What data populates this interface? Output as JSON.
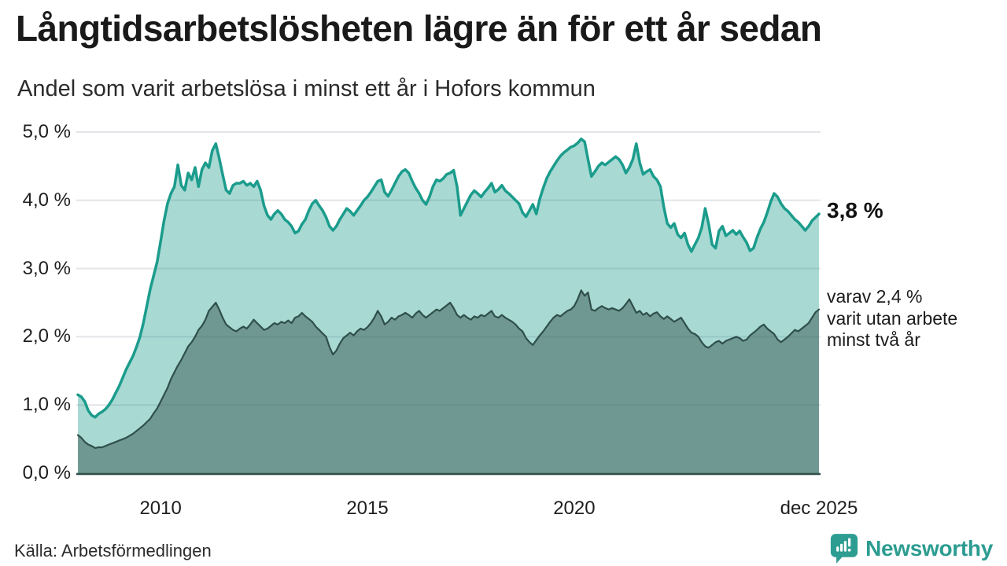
{
  "header": {
    "title": "Långtidsarbetslösheten lägre än för ett år sedan",
    "subtitle": "Andel som varit arbetslösa i minst ett år i Hofors kommun"
  },
  "chart_data": {
    "type": "area",
    "unit": "%",
    "title": "Långtidsarbetslösheten lägre än för ett år sedan",
    "subtitle": "Andel som varit arbetslösa i minst ett år i Hofors kommun",
    "grid": true,
    "ylim": [
      0,
      5
    ],
    "x_start_year": 2008,
    "x_points_per_year": 12,
    "yticks": [
      {
        "value": 5,
        "label": "5,0 %"
      },
      {
        "value": 4,
        "label": "4,0 %"
      },
      {
        "value": 3,
        "label": "3,0 %"
      },
      {
        "value": 2,
        "label": "2,0 %"
      },
      {
        "value": 1,
        "label": "1,0 %"
      },
      {
        "value": 0,
        "label": "0,0 %"
      }
    ],
    "xticks": [
      {
        "value": 2010,
        "label": "2010"
      },
      {
        "value": 2015,
        "label": "2015"
      },
      {
        "value": 2020,
        "label": "2020"
      },
      {
        "value": 2025.9167,
        "label": "dec 2025"
      }
    ],
    "series": [
      {
        "name": "minst ett år",
        "line_color": "#1b9c8c",
        "fill_color": "rgba(27,156,140,0.38)",
        "line_width": 3.5,
        "latest_value": "3,8 %",
        "values": [
          1.15,
          1.12,
          1.05,
          0.92,
          0.85,
          0.82,
          0.87,
          0.9,
          0.94,
          1.0,
          1.08,
          1.18,
          1.28,
          1.4,
          1.52,
          1.62,
          1.72,
          1.85,
          2.0,
          2.2,
          2.45,
          2.7,
          2.9,
          3.1,
          3.4,
          3.7,
          3.95,
          4.1,
          4.2,
          4.52,
          4.22,
          4.15,
          4.4,
          4.3,
          4.48,
          4.2,
          4.45,
          4.55,
          4.48,
          4.73,
          4.83,
          4.62,
          4.38,
          4.15,
          4.1,
          4.22,
          4.25,
          4.25,
          4.28,
          4.22,
          4.25,
          4.2,
          4.28,
          4.15,
          3.92,
          3.78,
          3.72,
          3.8,
          3.85,
          3.8,
          3.72,
          3.68,
          3.62,
          3.52,
          3.55,
          3.65,
          3.72,
          3.85,
          3.95,
          4.0,
          3.92,
          3.85,
          3.75,
          3.62,
          3.56,
          3.62,
          3.72,
          3.8,
          3.88,
          3.84,
          3.78,
          3.85,
          3.92,
          4.0,
          4.05,
          4.12,
          4.2,
          4.28,
          4.3,
          4.12,
          4.06,
          4.15,
          4.25,
          4.35,
          4.42,
          4.45,
          4.4,
          4.28,
          4.18,
          4.1,
          4.0,
          3.94,
          4.05,
          4.2,
          4.3,
          4.28,
          4.32,
          4.38,
          4.4,
          4.44,
          4.2,
          3.78,
          3.88,
          3.98,
          4.08,
          4.14,
          4.1,
          4.05,
          4.12,
          4.18,
          4.25,
          4.12,
          4.16,
          4.22,
          4.14,
          4.1,
          4.05,
          4.0,
          3.95,
          3.82,
          3.76,
          3.85,
          3.94,
          3.8,
          4.02,
          4.18,
          4.32,
          4.42,
          4.5,
          4.58,
          4.65,
          4.7,
          4.74,
          4.78,
          4.8,
          4.84,
          4.9,
          4.86,
          4.6,
          4.35,
          4.42,
          4.5,
          4.55,
          4.52,
          4.56,
          4.6,
          4.64,
          4.6,
          4.52,
          4.4,
          4.48,
          4.6,
          4.83,
          4.55,
          4.38,
          4.42,
          4.45,
          4.35,
          4.3,
          4.2,
          3.9,
          3.66,
          3.6,
          3.66,
          3.5,
          3.45,
          3.52,
          3.35,
          3.25,
          3.35,
          3.45,
          3.6,
          3.88,
          3.65,
          3.35,
          3.3,
          3.55,
          3.62,
          3.48,
          3.52,
          3.56,
          3.5,
          3.55,
          3.46,
          3.38,
          3.26,
          3.3,
          3.45,
          3.58,
          3.68,
          3.82,
          3.98,
          4.1,
          4.05,
          3.95,
          3.88,
          3.84,
          3.78,
          3.72,
          3.68,
          3.62,
          3.56,
          3.62,
          3.7,
          3.75,
          3.8
        ]
      },
      {
        "name": "minst två år",
        "line_color": "#2f4f4b",
        "fill_color": "rgba(61,92,86,0.52)",
        "line_width": 2.2,
        "latest_value": "2,4 %",
        "values": [
          0.56,
          0.52,
          0.46,
          0.42,
          0.4,
          0.37,
          0.38,
          0.38,
          0.4,
          0.42,
          0.44,
          0.46,
          0.48,
          0.5,
          0.52,
          0.55,
          0.58,
          0.62,
          0.66,
          0.7,
          0.75,
          0.8,
          0.88,
          0.95,
          1.05,
          1.15,
          1.25,
          1.38,
          1.48,
          1.58,
          1.66,
          1.76,
          1.86,
          1.92,
          2.0,
          2.1,
          2.16,
          2.25,
          2.38,
          2.44,
          2.5,
          2.4,
          2.28,
          2.18,
          2.14,
          2.1,
          2.08,
          2.12,
          2.15,
          2.12,
          2.18,
          2.25,
          2.2,
          2.15,
          2.1,
          2.12,
          2.16,
          2.2,
          2.18,
          2.22,
          2.2,
          2.24,
          2.2,
          2.28,
          2.3,
          2.35,
          2.3,
          2.26,
          2.22,
          2.15,
          2.1,
          2.05,
          2.0,
          1.85,
          1.74,
          1.8,
          1.9,
          1.98,
          2.02,
          2.06,
          2.02,
          2.08,
          2.12,
          2.1,
          2.14,
          2.2,
          2.28,
          2.38,
          2.3,
          2.18,
          2.22,
          2.28,
          2.25,
          2.3,
          2.32,
          2.35,
          2.32,
          2.28,
          2.34,
          2.38,
          2.32,
          2.28,
          2.32,
          2.36,
          2.4,
          2.38,
          2.42,
          2.46,
          2.5,
          2.42,
          2.32,
          2.28,
          2.32,
          2.28,
          2.25,
          2.3,
          2.28,
          2.32,
          2.3,
          2.34,
          2.38,
          2.3,
          2.28,
          2.32,
          2.28,
          2.25,
          2.22,
          2.18,
          2.12,
          2.08,
          1.98,
          1.92,
          1.88,
          1.95,
          2.02,
          2.08,
          2.15,
          2.22,
          2.28,
          2.32,
          2.3,
          2.34,
          2.38,
          2.4,
          2.45,
          2.55,
          2.68,
          2.6,
          2.65,
          2.4,
          2.38,
          2.42,
          2.45,
          2.42,
          2.4,
          2.42,
          2.4,
          2.38,
          2.42,
          2.48,
          2.55,
          2.45,
          2.35,
          2.38,
          2.32,
          2.35,
          2.3,
          2.34,
          2.36,
          2.3,
          2.26,
          2.3,
          2.26,
          2.22,
          2.25,
          2.28,
          2.2,
          2.12,
          2.06,
          2.04,
          2.0,
          1.92,
          1.86,
          1.84,
          1.88,
          1.92,
          1.94,
          1.9,
          1.94,
          1.96,
          1.98,
          2.0,
          1.98,
          1.94,
          1.96,
          2.02,
          2.06,
          2.1,
          2.15,
          2.18,
          2.12,
          2.08,
          2.04,
          1.96,
          1.92,
          1.96,
          2.0,
          2.05,
          2.1,
          2.08,
          2.12,
          2.16,
          2.2,
          2.28,
          2.36,
          2.4
        ]
      }
    ],
    "annotations": {
      "latest_primary": "3,8 %",
      "secondary_line1": "varav 2,4 %",
      "secondary_line2": "varit utan arbete",
      "secondary_line3": "minst två år"
    },
    "grid_color": "#e4e4e9",
    "baseline_color": "#2f4f4b",
    "legend_position": "none"
  },
  "footer": {
    "source": "Källa: Arbetsförmedlingen",
    "brand": "Newsworthy",
    "brand_color": "#2c9c91"
  }
}
